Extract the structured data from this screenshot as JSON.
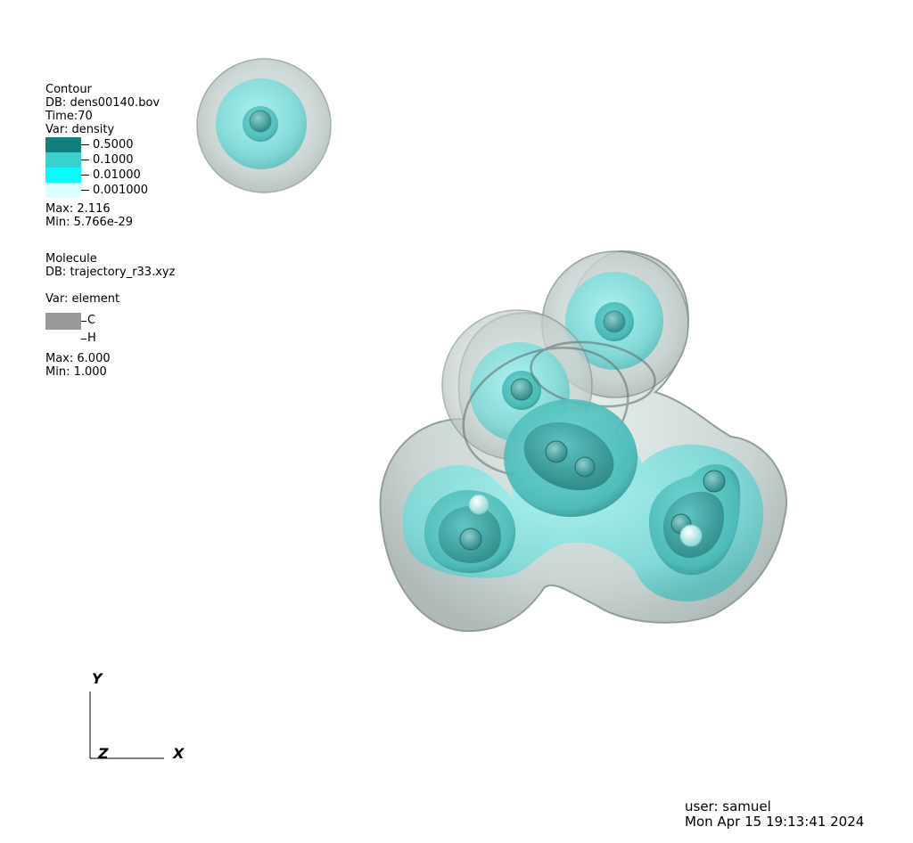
{
  "contour_legend": {
    "plot_type": "Contour",
    "db": "DB: dens00140.bov",
    "time": "Time:70",
    "var": "Var: density",
    "levels": [
      {
        "label": "0.5000",
        "color": "#137f7f"
      },
      {
        "label": "0.1000",
        "color": "#3ccfcf"
      },
      {
        "label": "0.01000",
        "color": "#00ffff"
      },
      {
        "label": "0.001000",
        "color": "#d9ffff"
      }
    ],
    "max": "Max:  2.116",
    "min": "Min:  5.766e-29"
  },
  "molecule_legend": {
    "plot_type": "Molecule",
    "db": "DB: trajectory_r33.xyz",
    "var": "Var: element",
    "elements": [
      {
        "label": "C",
        "color": "#999999"
      },
      {
        "label": "H",
        "color": "#ffffff"
      }
    ],
    "max": "Max:  6.000",
    "min": "Min:  1.000"
  },
  "axes": {
    "x": "X",
    "y": "Y",
    "z": "Z"
  },
  "footer": {
    "user": "user: samuel",
    "timestamp": "Mon Apr 15 19:13:41 2024"
  },
  "colors": {
    "outer_shell": "#c6d2d0",
    "shell_edge": "#8a9694",
    "mid_shell": "#7fd9d7",
    "inner_shell": "#49b9b6",
    "core": "#2e9896",
    "atom_highlight": "#c9f6f4"
  }
}
